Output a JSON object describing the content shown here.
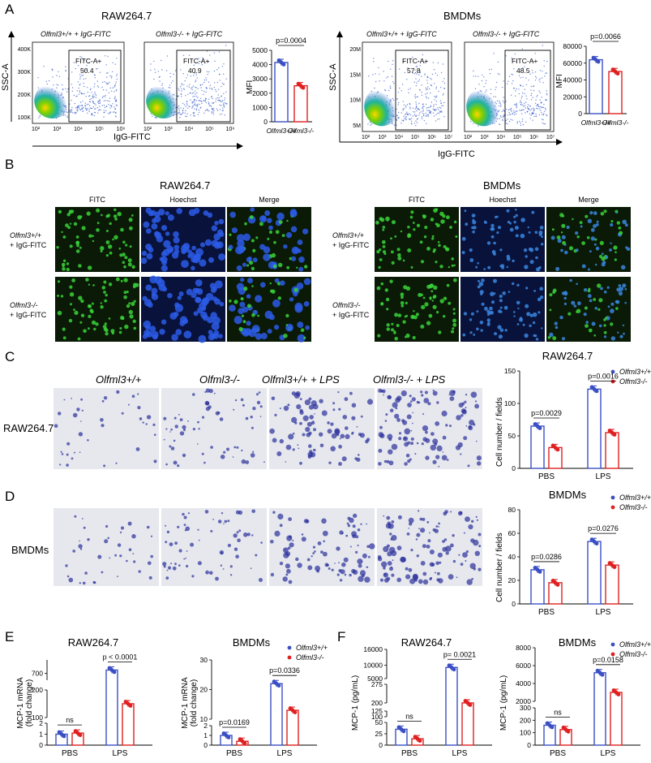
{
  "colors": {
    "wt": "#3b4fc4",
    "ko": "#e02020",
    "fitc_bg": "#0a1a06",
    "hoechst_bg": "#08123a",
    "micro_bg": "#e6e8ee",
    "crystal": "#2a2f9a"
  },
  "labels": {
    "A": "A",
    "B": "B",
    "C": "C",
    "D": "D",
    "E": "E",
    "F": "F",
    "raw": "RAW264.7",
    "bmdm": "BMDMs",
    "wt_igg": "Olfml3+/+ + IgG-FITC",
    "ko_igg": "Olfml3-/- + IgG-FITC",
    "ssc": "SSC-A",
    "iggfitc": "IgG-FITC",
    "gate": "FITC-A+",
    "mfi": "MFI",
    "wt": "Olfml3+/+",
    "ko": "Olfml3-/-",
    "fitc": "FITC",
    "hoechst": "Hoechst",
    "merge": "Merge",
    "wt_row1": "Olfml3+/+",
    "wt_row2": "+ IgG-FITC",
    "ko_row1": "Olfml3-/-",
    "ko_row2": "+ IgG-FITC",
    "wt_lps": "Olfml3+/+ + LPS",
    "ko_lps": "Olfml3-/- + LPS",
    "cells": "Cell number / fields",
    "pbs": "PBS",
    "lps": "LPS",
    "mcp_mrna": "MCP-1 mRNA",
    "fold": "(fold change)",
    "mcp_pg": "MCP-1 (pg/mL)",
    "ns": "ns"
  },
  "flow": {
    "raw": {
      "yticks": [
        "400K",
        "300K",
        "200K",
        "100K"
      ],
      "xticks": [
        "10²",
        "10³",
        "10⁴",
        "10⁵",
        "10⁶"
      ],
      "wt_pct": "50.4",
      "ko_pct": "40.9"
    },
    "bmdm": {
      "yticks": [
        "20M",
        "15M",
        "10M",
        "5M"
      ],
      "xticks": [
        "10²",
        "10³",
        "10⁴",
        "10⁵",
        "10⁶",
        "10⁷"
      ],
      "wt_pct": "57.8",
      "ko_pct": "48.5"
    }
  },
  "chart_data": [
    {
      "id": "A-raw-mfi",
      "type": "bar",
      "categories": [
        "Olfml3+/+",
        "Olfml3-/-"
      ],
      "values": [
        4150,
        2520
      ],
      "ylabel": "MFI",
      "ylim": [
        0,
        5000
      ],
      "yticks": [
        "5000",
        "4000",
        "3000",
        "2000",
        "1000",
        "0"
      ],
      "p": "p=0.0004"
    },
    {
      "id": "A-bmdm-mfi",
      "type": "bar",
      "categories": [
        "Olfml3+/+",
        "Olfml3-/-"
      ],
      "values": [
        64000,
        50000
      ],
      "ylabel": "MFI",
      "ylim": [
        0,
        80000
      ],
      "yticks": [
        "80000",
        "60000",
        "40000",
        "20000",
        "0"
      ],
      "p": "p=0.0066"
    },
    {
      "id": "C-raw",
      "type": "bar",
      "title": "RAW264.7",
      "categories": [
        "PBS",
        "LPS"
      ],
      "series": [
        {
          "name": "Olfml3+/+",
          "values": [
            65,
            122
          ]
        },
        {
          "name": "Olfml3-/-",
          "values": [
            32,
            55
          ]
        }
      ],
      "ylabel": "Cell number / fields",
      "ylim": [
        0,
        150
      ],
      "yticks": [
        "150",
        "100",
        "50",
        "0"
      ],
      "p": [
        "p=0.0029",
        "p=0.0016"
      ]
    },
    {
      "id": "D-bmdm",
      "type": "bar",
      "title": "BMDMs",
      "categories": [
        "PBS",
        "LPS"
      ],
      "series": [
        {
          "name": "Olfml3+/+",
          "values": [
            29,
            53
          ]
        },
        {
          "name": "Olfml3-/-",
          "values": [
            18,
            33
          ]
        }
      ],
      "ylabel": "Cell number / fields",
      "ylim": [
        0,
        80
      ],
      "yticks": [
        "80",
        "60",
        "40",
        "20",
        "0"
      ],
      "p": [
        "p=0.0286",
        "p=0.0276"
      ]
    },
    {
      "id": "E-raw",
      "type": "bar",
      "title": "RAW264.7",
      "categories": [
        "PBS",
        "LPS"
      ],
      "series": [
        {
          "name": "Olfml3+/+",
          "values": [
            1.0,
            705
          ]
        },
        {
          "name": "Olfml3-/-",
          "values": [
            1.1,
            150
          ]
        }
      ],
      "ylabel": "MCP-1 mRNA (fold change)",
      "yticks": [
        "700",
        "200",
        "100",
        "2",
        "1",
        "0"
      ],
      "p": [
        "ns",
        "p < 0.0001"
      ]
    },
    {
      "id": "E-bmdm",
      "type": "bar",
      "title": "BMDMs",
      "categories": [
        "PBS",
        "LPS"
      ],
      "series": [
        {
          "name": "Olfml3+/+",
          "values": [
            1.0,
            22
          ]
        },
        {
          "name": "Olfml3-/-",
          "values": [
            0.4,
            13
          ]
        }
      ],
      "ylabel": "MCP-1 mRNA (fold change)",
      "yticks": [
        "30",
        "20",
        "10",
        "2",
        "1",
        "0"
      ],
      "p": [
        "p=0.0169",
        "p=0.0336"
      ]
    },
    {
      "id": "F-raw",
      "type": "bar",
      "title": "RAW264.7",
      "categories": [
        "PBS",
        "LPS"
      ],
      "series": [
        {
          "name": "Olfml3+/+",
          "values": [
            35,
            9200
          ]
        },
        {
          "name": "Olfml3-/-",
          "values": [
            14,
            200
          ]
        }
      ],
      "ylabel": "MCP-1 (pg/mL)",
      "yticks": [
        "16000",
        "10000",
        "5000",
        "275",
        "200",
        "125",
        "100",
        "50",
        "25",
        "0"
      ],
      "p": [
        "ns",
        "p= 0.0021"
      ]
    },
    {
      "id": "F-bmdm",
      "type": "bar",
      "title": "BMDMs",
      "categories": [
        "PBS",
        "LPS"
      ],
      "series": [
        {
          "name": "Olfml3+/+",
          "values": [
            160,
            5200
          ]
        },
        {
          "name": "Olfml3-/-",
          "values": [
            125,
            3000
          ]
        }
      ],
      "ylabel": "MCP-1 (pg/mL)",
      "yticks": [
        "8000",
        "6000",
        "4000",
        "2000",
        "300",
        "200",
        "100",
        "0"
      ],
      "p": [
        "ns",
        "p=0.0158"
      ]
    }
  ]
}
